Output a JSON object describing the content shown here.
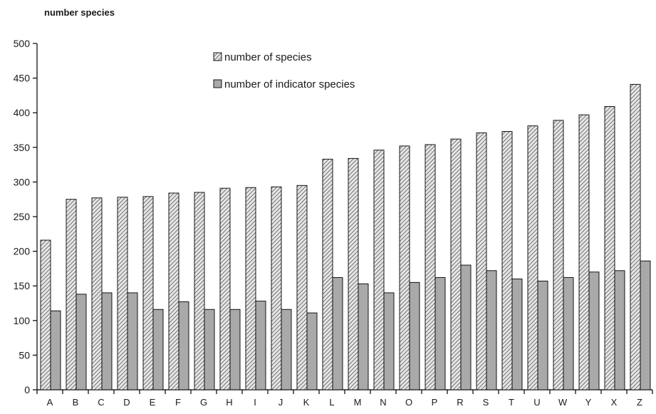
{
  "chart_data": {
    "type": "bar",
    "title": "",
    "ylabel": "number species",
    "xlabel": "",
    "ylim": [
      0,
      500
    ],
    "yticks": [
      0,
      50,
      100,
      150,
      200,
      250,
      300,
      350,
      400,
      450,
      500
    ],
    "legend_position": "top-center",
    "grid": false,
    "categories": [
      "A",
      "B",
      "C",
      "D",
      "E",
      "F",
      "G",
      "H",
      "I",
      "J",
      "K",
      "L",
      "M",
      "N",
      "O",
      "P",
      "R",
      "S",
      "T",
      "U",
      "W",
      "Y",
      "X",
      "Z"
    ],
    "series": [
      {
        "name": "number of species",
        "pattern": "diagonal-hatch",
        "color": "#b4b4b4",
        "values": [
          216,
          275,
          277,
          278,
          279,
          284,
          285,
          291,
          292,
          293,
          295,
          333,
          334,
          346,
          352,
          354,
          362,
          371,
          373,
          381,
          389,
          397,
          409,
          441
        ]
      },
      {
        "name": "number of indicator species",
        "pattern": "solid",
        "color": "#a9a9a9",
        "values": [
          114,
          138,
          140,
          140,
          116,
          127,
          116,
          116,
          128,
          116,
          111,
          162,
          153,
          140,
          155,
          162,
          180,
          172,
          160,
          157,
          162,
          170,
          172,
          186
        ]
      }
    ]
  }
}
